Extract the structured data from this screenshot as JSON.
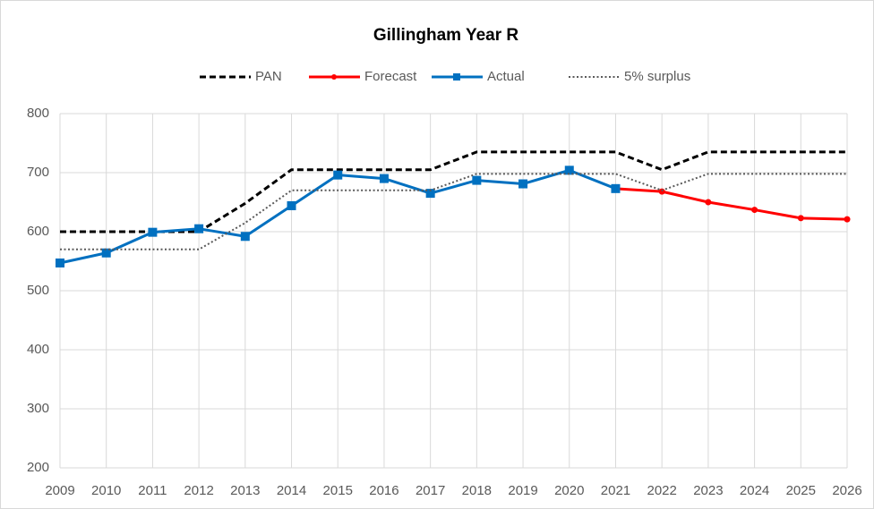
{
  "chart_data": {
    "type": "line",
    "title": "Gillingham Year R",
    "categories": [
      "2009",
      "2010",
      "2011",
      "2012",
      "2013",
      "2014",
      "2015",
      "2016",
      "2017",
      "2018",
      "2019",
      "2020",
      "2021",
      "2022",
      "2023",
      "2024",
      "2025",
      "2026"
    ],
    "series": [
      {
        "name": "PAN",
        "color": "#000000",
        "style": "dashed",
        "marker": null,
        "values": [
          600,
          600,
          600,
          600,
          648,
          705,
          705,
          705,
          705,
          735,
          735,
          735,
          735,
          705,
          735,
          735,
          735,
          735
        ]
      },
      {
        "name": "Forecast",
        "color": "#ff0000",
        "style": "solid",
        "marker": "circle",
        "values": [
          null,
          null,
          null,
          null,
          null,
          null,
          null,
          null,
          null,
          null,
          null,
          null,
          673,
          668,
          650,
          637,
          623,
          621
        ]
      },
      {
        "name": "Actual",
        "color": "#0070c0",
        "style": "solid",
        "marker": "square",
        "values": [
          547,
          564,
          599,
          605,
          592,
          644,
          696,
          690,
          665,
          687,
          681,
          704,
          673,
          null,
          null,
          null,
          null,
          null
        ]
      },
      {
        "name": "5% surplus",
        "color": "#595959",
        "style": "dotted",
        "marker": null,
        "values": [
          570,
          570,
          570,
          570,
          615,
          670,
          670,
          670,
          670,
          698,
          698,
          698,
          698,
          670,
          698,
          698,
          698,
          698
        ]
      }
    ],
    "ylim": [
      200,
      800
    ],
    "yticks": [
      200,
      300,
      400,
      500,
      600,
      700,
      800
    ],
    "grid": true,
    "legend": "top"
  }
}
